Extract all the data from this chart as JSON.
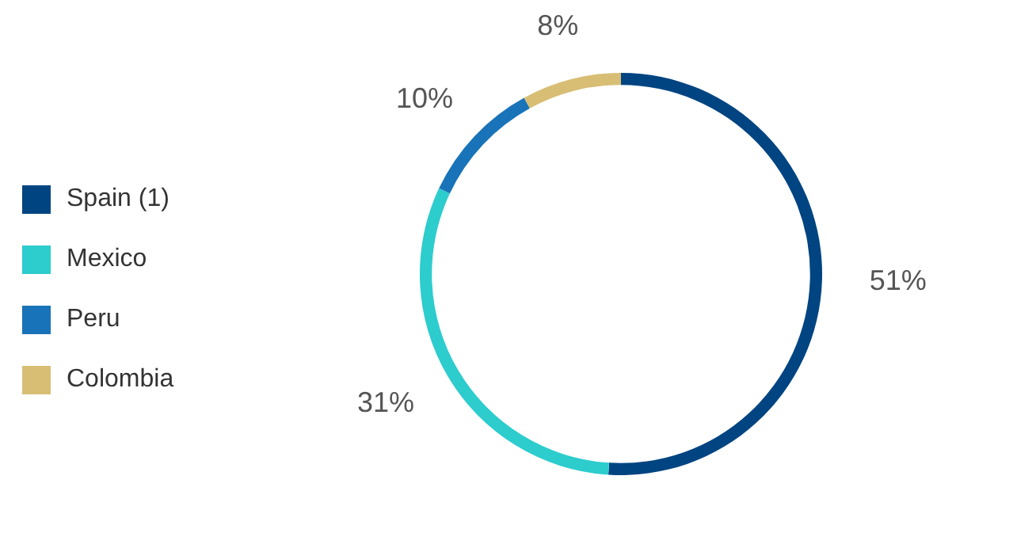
{
  "chart_data": {
    "type": "donut",
    "categories": [
      "Spain (1)",
      "Mexico",
      "Peru",
      "Colombia"
    ],
    "values": [
      51,
      31,
      10,
      8
    ],
    "colors": [
      "#004481",
      "#2dcccd",
      "#1973b8",
      "#d8be75"
    ],
    "value_labels": [
      "51%",
      "31%",
      "10%",
      "8%"
    ],
    "legend": "left"
  }
}
